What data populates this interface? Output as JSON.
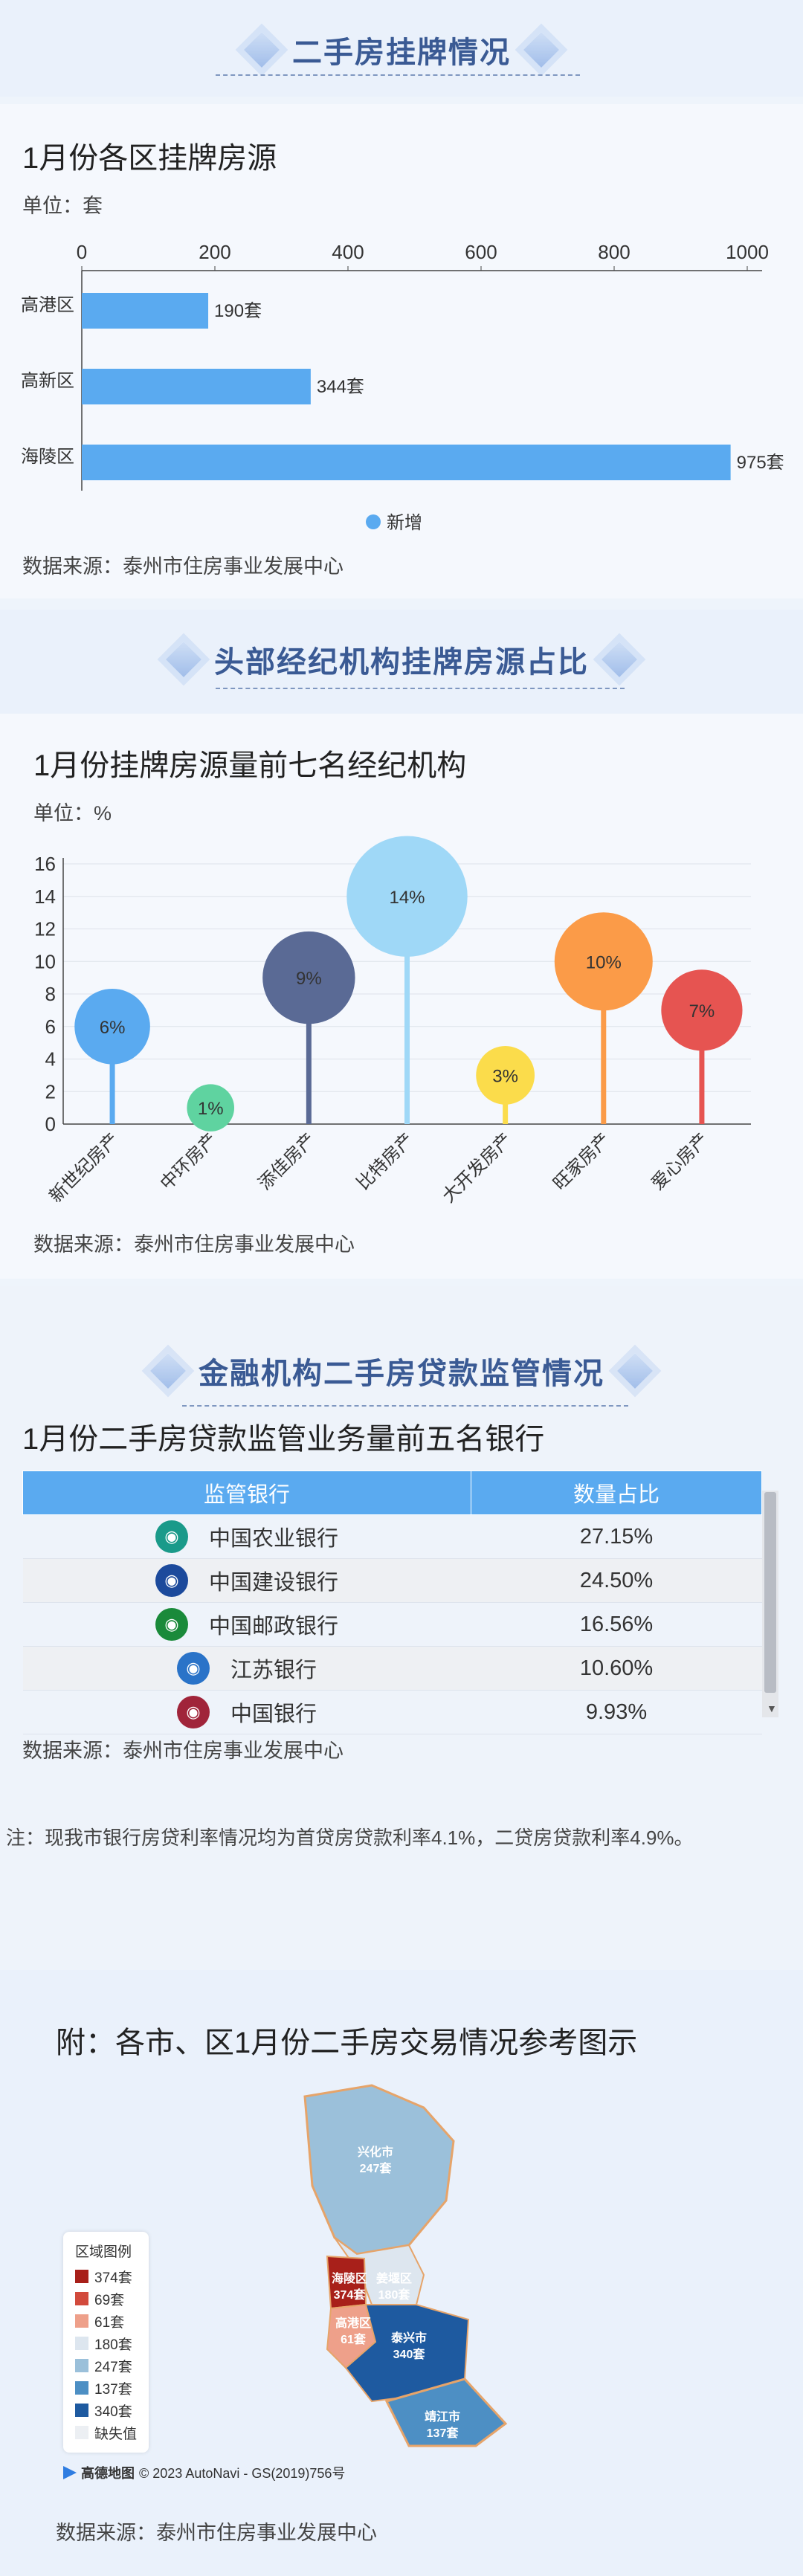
{
  "section1": {
    "title": "二手房挂牌情况",
    "subtitle": "1月份各区挂牌房源",
    "unit": "单位：套",
    "source": "数据来源：泰州市住房事业发展中心"
  },
  "chart_listings": {
    "type": "bar",
    "categories": [
      "高港区",
      "高新区",
      "海陵区"
    ],
    "series": [
      {
        "name": "新增",
        "values": [
          190,
          344,
          975
        ]
      }
    ],
    "value_labels": [
      "190套",
      "344套",
      "975套"
    ],
    "xlim": [
      0,
      1000
    ],
    "ticks": [
      0,
      200,
      400,
      600,
      800,
      1000
    ],
    "legend_position": "bottom",
    "color": "#5aaaf0"
  },
  "section2": {
    "title": "头部经纪机构挂牌房源占比",
    "subtitle": "1月份挂牌房源量前七名经纪机构",
    "unit": "单位：%",
    "source": "数据来源：泰州市住房事业发展中心"
  },
  "chart_agencies": {
    "type": "scatter",
    "categories": [
      "新世纪房产",
      "中环房产",
      "添佳房产",
      "比特房产",
      "大开发房产",
      "旺家房产",
      "爱心房产"
    ],
    "values": [
      6,
      1,
      9,
      14,
      3,
      10,
      7
    ],
    "value_labels": [
      "6%",
      "1%",
      "9%",
      "14%",
      "3%",
      "10%",
      "7%"
    ],
    "colors": [
      "#5aaaf0",
      "#5fd3a0",
      "#5a6a95",
      "#9fd8f7",
      "#fbdc4b",
      "#fb9b48",
      "#e65451"
    ],
    "ylim": [
      0,
      16
    ],
    "ticks": [
      0,
      2,
      4,
      6,
      8,
      10,
      12,
      14,
      16
    ],
    "grid": true
  },
  "section3": {
    "title": "金融机构二手房贷款监管情况",
    "subtitle": "1月份二手房贷款监管业务量前五名银行",
    "source": "数据来源：泰州市住房事业发展中心",
    "note": "注：现我市银行房贷利率情况均为首贷房贷款利率4.1%，二贷房贷款利率4.9%。"
  },
  "bank_table": {
    "headers": [
      "监管银行",
      "数量占比"
    ],
    "rows": [
      {
        "name": "中国农业银行",
        "share": "27.15%",
        "logo_color": "#1a9a8a",
        "logo_icon": "abc-logo-icon"
      },
      {
        "name": "中国建设银行",
        "share": "24.50%",
        "logo_color": "#1c4a9c",
        "logo_icon": "ccb-logo-icon"
      },
      {
        "name": "中国邮政银行",
        "share": "16.56%",
        "logo_color": "#1a8a3a",
        "logo_icon": "psbc-logo-icon"
      },
      {
        "name": "江苏银行",
        "share": "10.60%",
        "logo_color": "#2a73c8",
        "logo_icon": "jsb-logo-icon"
      },
      {
        "name": "中国银行",
        "share": "9.93%",
        "logo_color": "#a0243a",
        "logo_icon": "boc-logo-icon"
      }
    ]
  },
  "section4": {
    "title": "附：各市、区1月份二手房交易情况参考图示",
    "source": "数据来源：泰州市住房事业发展中心",
    "copyright": "© 2023 AutoNavi - GS(2019)756号",
    "amap": "高德地图"
  },
  "map": {
    "legend_title": "区域图例",
    "legend": [
      {
        "label": "374套",
        "color": "#a8201a"
      },
      {
        "label": "69套",
        "color": "#d24a3c"
      },
      {
        "label": "61套",
        "color": "#eea08a"
      },
      {
        "label": "180套",
        "color": "#dde6ef"
      },
      {
        "label": "247套",
        "color": "#9bc0da"
      },
      {
        "label": "137套",
        "color": "#4d8fc4"
      },
      {
        "label": "340套",
        "color": "#1e5aa0"
      },
      {
        "label": "缺失值",
        "color": "#eceff3"
      }
    ],
    "regions": [
      {
        "name": "兴化市",
        "value": "247套"
      },
      {
        "name": "海陵区",
        "value": "374套"
      },
      {
        "name": "姜堰区",
        "value": "180套"
      },
      {
        "name": "高港区",
        "value": "61套"
      },
      {
        "name": "泰兴市",
        "value": "340套"
      },
      {
        "name": "靖江市",
        "value": "137套"
      }
    ]
  }
}
